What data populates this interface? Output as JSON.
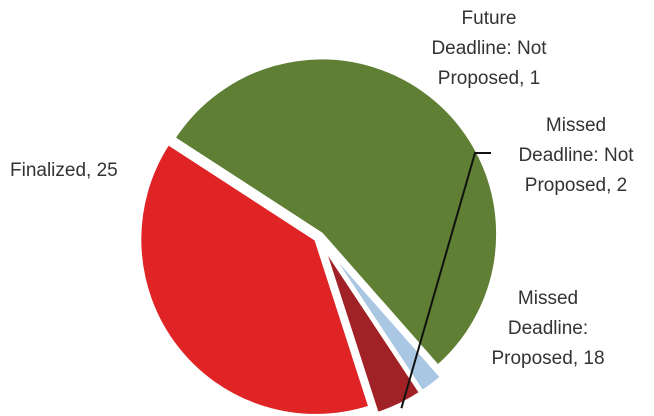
{
  "chart_data": {
    "type": "pie",
    "title": "",
    "slices": [
      {
        "label": "Finalized",
        "value": 25,
        "label_lines": [
          "Finalized, 25"
        ],
        "color": "#5e7f34"
      },
      {
        "label": "Future Deadline: Not Proposed",
        "value": 1,
        "label_lines": [
          "Future",
          "Deadline: Not",
          "Proposed, 1"
        ],
        "color": "#a9c6e3"
      },
      {
        "label": "Missed Deadline: Not Proposed",
        "value": 2,
        "label_lines": [
          "Missed",
          "Deadline: Not",
          "Proposed, 2"
        ],
        "color": "#a12226"
      },
      {
        "label": "Missed Deadline: Proposed",
        "value": 18,
        "label_lines": [
          "Missed",
          "Deadline:",
          "Proposed, 18"
        ],
        "color": "#e02325"
      }
    ],
    "legend": "none"
  }
}
